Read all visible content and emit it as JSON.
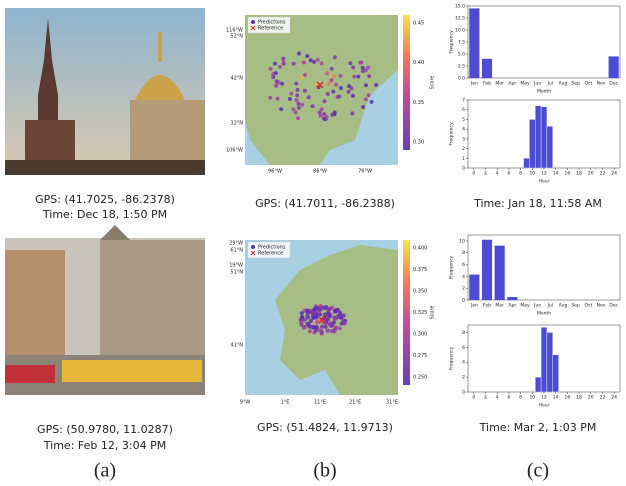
{
  "chart_data": [
    {
      "type": "bar",
      "categories": [
        "Jan",
        "Feb",
        "Mar",
        "Apr",
        "May",
        "Jun",
        "Jul",
        "Aug",
        "Sep",
        "Oct",
        "Nov",
        "Dec"
      ],
      "values": [
        14.5,
        4,
        0,
        0,
        0,
        0,
        0,
        0,
        0,
        0,
        0,
        4.5
      ],
      "color": "#4b4bd4",
      "ylim": [
        0,
        15
      ],
      "yticks": [
        {
          "value": 0,
          "label": "0.0"
        },
        {
          "value": 2.5,
          "label": "2.5"
        },
        {
          "value": 5,
          "label": "5.0"
        },
        {
          "value": 7.5,
          "label": "7.5"
        },
        {
          "value": 10,
          "label": "10.0"
        },
        {
          "value": 12.5,
          "label": "12.5"
        },
        {
          "value": 15,
          "label": "15.0"
        }
      ],
      "ylabel": "Frequency",
      "xlabel": "Month"
    },
    {
      "type": "bar",
      "x": [
        9,
        10,
        11,
        12,
        13
      ],
      "values": [
        1,
        5,
        6.4,
        6.3,
        4.3
      ],
      "color": "#4b4bd4",
      "xlim": [
        -1,
        25
      ],
      "xticks": [
        0,
        2,
        4,
        6,
        8,
        10,
        12,
        14,
        16,
        18,
        20,
        22,
        24
      ],
      "ylim": [
        0,
        7
      ],
      "yticks": [
        0,
        1,
        2,
        3,
        4,
        5,
        6,
        7
      ],
      "ylabel": "Frequency",
      "xlabel": "Hour"
    },
    {
      "type": "bar",
      "categories": [
        "Jan",
        "Feb",
        "Mar",
        "Apr",
        "May",
        "Jun",
        "Jul",
        "Aug",
        "Sep",
        "Oct",
        "Nov",
        "Dec"
      ],
      "values": [
        4.3,
        10.2,
        9.2,
        0.5,
        0,
        0,
        0,
        0,
        0,
        0,
        0,
        0
      ],
      "color": "#4b4bd4",
      "ylim": [
        0,
        11
      ],
      "yticks": [
        0,
        2,
        4,
        6,
        8,
        10
      ],
      "ylabel": "Frequency",
      "xlabel": "Month"
    },
    {
      "type": "bar",
      "x": [
        11,
        12,
        13,
        14
      ],
      "values": [
        2,
        8.7,
        8,
        5
      ],
      "color": "#4b4bd4",
      "xlim": [
        -1,
        25
      ],
      "xticks": [
        0,
        2,
        4,
        6,
        8,
        10,
        12,
        14,
        16,
        18,
        20,
        22,
        24
      ],
      "ylim": [
        0,
        9
      ],
      "yticks": [
        0,
        2,
        4,
        6,
        8
      ],
      "ylabel": "Frequency",
      "xlabel": "Hour"
    }
  ],
  "rows": [
    {
      "photo_gps": "GPS: (41.7025, -86.2378)",
      "photo_time": "Time: Dec 18, 1:50 PM",
      "map_gps": "GPS: (41.7011, -86.2388)",
      "chart_time": "Time: Jan 18, 11:58 AM",
      "map": {
        "legend": [
          "Predictions",
          "Reference"
        ],
        "colorbar_label": "Score",
        "colorbar_ticks": [
          "0.30",
          "0.35",
          "0.40",
          "0.45"
        ],
        "geo_labels": [
          "116°W",
          "52°N",
          "42°N",
          "32°N",
          "106°W",
          "96°W",
          "86°W",
          "76°W"
        ]
      }
    },
    {
      "photo_gps": "GPS: (50.9780, 11.0287)",
      "photo_time": "Time: Feb 12, 3:04 PM",
      "map_gps": "GPS: (51.4824, 11.9713)",
      "chart_time": "Time: Mar 2, 1:03 PM",
      "map": {
        "legend": [
          "Predictions",
          "Reference"
        ],
        "colorbar_label": "Score",
        "colorbar_ticks": [
          "0.250",
          "0.275",
          "0.300",
          "0.325",
          "0.350",
          "0.375",
          "0.400"
        ],
        "geo_labels": [
          "29°W",
          "61°N",
          "19°W",
          "51°N",
          "41°N",
          "9°W",
          "1°E",
          "11°E",
          "21°E",
          "31°E"
        ]
      }
    }
  ],
  "labels": [
    "(a)",
    "(b)",
    "(c)"
  ]
}
